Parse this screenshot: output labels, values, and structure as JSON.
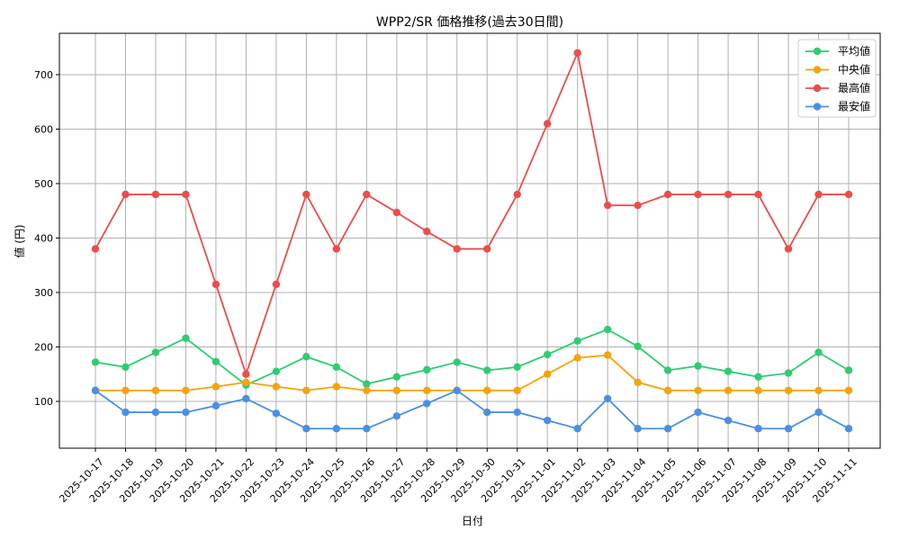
{
  "chart_data": {
    "type": "line",
    "title": "WPP2/SR 価格推移(過去30日間)",
    "xlabel": "日付",
    "ylabel": "値 (円)",
    "categories": [
      "2025-10-17",
      "2025-10-18",
      "2025-10-19",
      "2025-10-20",
      "2025-10-21",
      "2025-10-22",
      "2025-10-23",
      "2025-10-24",
      "2025-10-25",
      "2025-10-26",
      "2025-10-27",
      "2025-10-28",
      "2025-10-29",
      "2025-10-30",
      "2025-10-31",
      "2025-11-01",
      "2025-11-02",
      "2025-11-03",
      "2025-11-04",
      "2025-11-05",
      "2025-11-06",
      "2025-11-07",
      "2025-11-08",
      "2025-11-09",
      "2025-11-10",
      "2025-11-11"
    ],
    "y_ticks": [
      100,
      200,
      300,
      400,
      500,
      600,
      700
    ],
    "ylim": [
      14,
      776
    ],
    "grid": true,
    "legend_position": "top-right",
    "series": [
      {
        "name": "平均値",
        "color": "#2ecc71",
        "values": [
          172,
          163,
          190,
          216,
          173,
          130,
          155,
          182,
          163,
          132,
          145,
          158,
          172,
          157,
          163,
          186,
          211,
          232,
          201,
          157,
          165,
          155,
          145,
          152,
          190,
          157
        ]
      },
      {
        "name": "中央値",
        "color": "#f5a30a",
        "values": [
          120,
          120,
          120,
          120,
          127,
          135,
          127,
          120,
          127,
          120,
          120,
          120,
          120,
          120,
          120,
          150,
          180,
          185,
          135,
          120,
          120,
          120,
          120,
          120,
          120,
          120
        ]
      },
      {
        "name": "最高値",
        "color": "#ef4b4b",
        "values": [
          380,
          480,
          480,
          480,
          315,
          150,
          315,
          480,
          380,
          480,
          447,
          412,
          380,
          380,
          480,
          610,
          740,
          460,
          460,
          480,
          480,
          480,
          480,
          380,
          480,
          480
        ]
      },
      {
        "name": "最安値",
        "color": "#4a90e2",
        "values": [
          120,
          80,
          80,
          80,
          92,
          105,
          78,
          50,
          50,
          50,
          73,
          96,
          120,
          80,
          80,
          65,
          50,
          105,
          50,
          50,
          80,
          65,
          50,
          50,
          80,
          50
        ]
      }
    ]
  }
}
